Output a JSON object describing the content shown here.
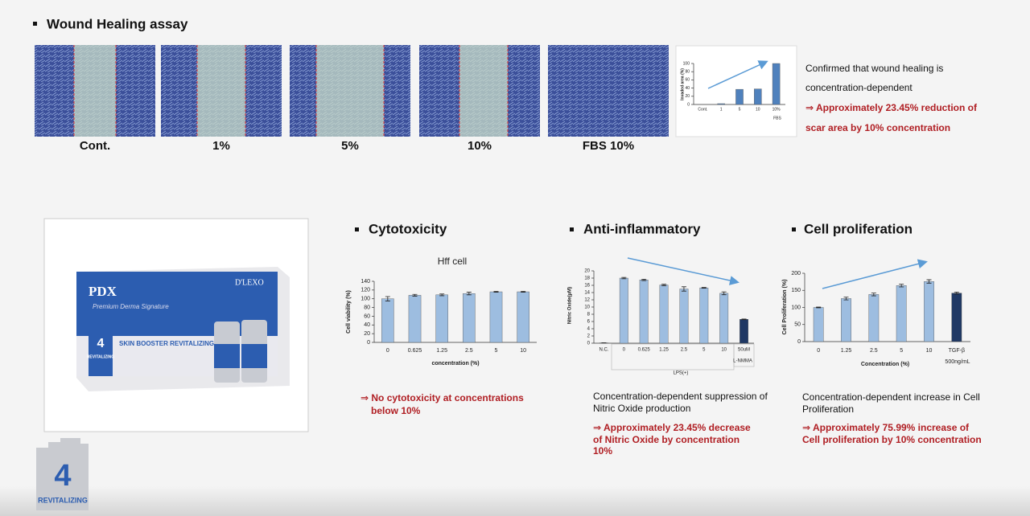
{
  "header": {
    "title": "Wound Healing assay"
  },
  "wound_images": {
    "captions": [
      "Cont.",
      "1%",
      "5%",
      "10%",
      "FBS  10%"
    ]
  },
  "wound_note": {
    "lines": [
      "Confirmed that wound healing is",
      "concentration-dependent",
      "⇒  Approximately 23.45% reduction of",
      "scar area by 10% concentration"
    ]
  },
  "sections": [
    "Cytotoxicity",
    "Anti-inflammatory",
    "Cell proliferation"
  ],
  "notes": {
    "cytotoxicity": [
      "⇒ No cytotoxicity at concentrations",
      "below 10%"
    ],
    "anti_inflammatory": [
      "Concentration-dependent suppression of",
      "Nitric Oxide production",
      "⇒ Approximately 23.45% decrease",
      "of Nitric Oxide by concentration",
      "10%"
    ],
    "cell_proliferation": [
      "Concentration-dependent increase in Cell",
      "Proliferation",
      "⇒ Approximately 75.99% increase of",
      "Cell proliferation by 10% concentration"
    ]
  },
  "product": {
    "brand": "PDX",
    "maker": "D'LEXO",
    "script": "Premium Derma Signature",
    "name": "SKIN BOOSTER REVITALIZING",
    "number": "4",
    "line": "REVITALIZING"
  },
  "logo": {
    "number": "4",
    "label": "REVITALIZING"
  },
  "chart_data": [
    {
      "type": "bar",
      "ylabel": "Invaded area (%)",
      "categories": [
        "Cont.",
        "1",
        "5",
        "10",
        "10%"
      ],
      "values": [
        0,
        2,
        37,
        38,
        100
      ],
      "colors": [
        "#4f81bd",
        "#4f81bd",
        "#4f81bd",
        "#4f81bd",
        "#4f81bd"
      ],
      "ylim": [
        0,
        100
      ],
      "yticks": [
        0,
        20,
        40,
        60,
        80,
        100
      ],
      "annotations": [
        "FBS"
      ]
    },
    {
      "type": "bar",
      "title": "Hff cell",
      "ylabel": "Cell viability (%)",
      "xlabel": "concentration (%)",
      "categories": [
        "0",
        "0.625",
        "1.25",
        "2.5",
        "5",
        "10"
      ],
      "values": [
        100,
        108,
        109,
        112,
        116,
        116
      ],
      "errors": [
        5,
        2,
        2,
        3,
        1,
        1
      ],
      "colors": [
        "#9dbde0",
        "#9dbde0",
        "#9dbde0",
        "#9dbde0",
        "#9dbde0",
        "#9dbde0"
      ],
      "ylim": [
        0,
        140
      ],
      "yticks": [
        0,
        20,
        40,
        60,
        80,
        100,
        120,
        140
      ]
    },
    {
      "type": "bar",
      "ylabel": "Nitric Oxide(μM)",
      "categories": [
        "N.C.",
        "0",
        "0.625",
        "1.25",
        "2.5",
        "5",
        "10",
        "50uM"
      ],
      "values": [
        0.1,
        18,
        17.5,
        16.1,
        15,
        15.3,
        13.8,
        6.6
      ],
      "errors": [
        0,
        0.2,
        0.2,
        0.2,
        0.6,
        0.1,
        0.4,
        0.1
      ],
      "colors": [
        "#9dbde0",
        "#9dbde0",
        "#9dbde0",
        "#9dbde0",
        "#9dbde0",
        "#9dbde0",
        "#9dbde0",
        "#1f3864"
      ],
      "ylim": [
        0,
        20
      ],
      "yticks": [
        0,
        2,
        4,
        6,
        8,
        10,
        12,
        14,
        16,
        18,
        20
      ],
      "annotations": [
        "LPS(+)",
        "L-NMMA"
      ]
    },
    {
      "type": "bar",
      "ylabel": "Cell Proliferation (%)",
      "xlabel": "Concentration (%)",
      "categories": [
        "0",
        "1.25",
        "2.5",
        "5",
        "10",
        "TGF-β"
      ],
      "values": [
        100,
        126,
        138,
        164,
        176,
        142
      ],
      "errors": [
        1,
        4,
        4,
        4,
        5,
        3
      ],
      "colors": [
        "#9dbde0",
        "#9dbde0",
        "#9dbde0",
        "#9dbde0",
        "#9dbde0",
        "#1f3864"
      ],
      "ylim": [
        0,
        200
      ],
      "yticks": [
        0,
        50,
        100,
        150,
        200
      ],
      "annotations": [
        "500ng/mL"
      ]
    }
  ]
}
